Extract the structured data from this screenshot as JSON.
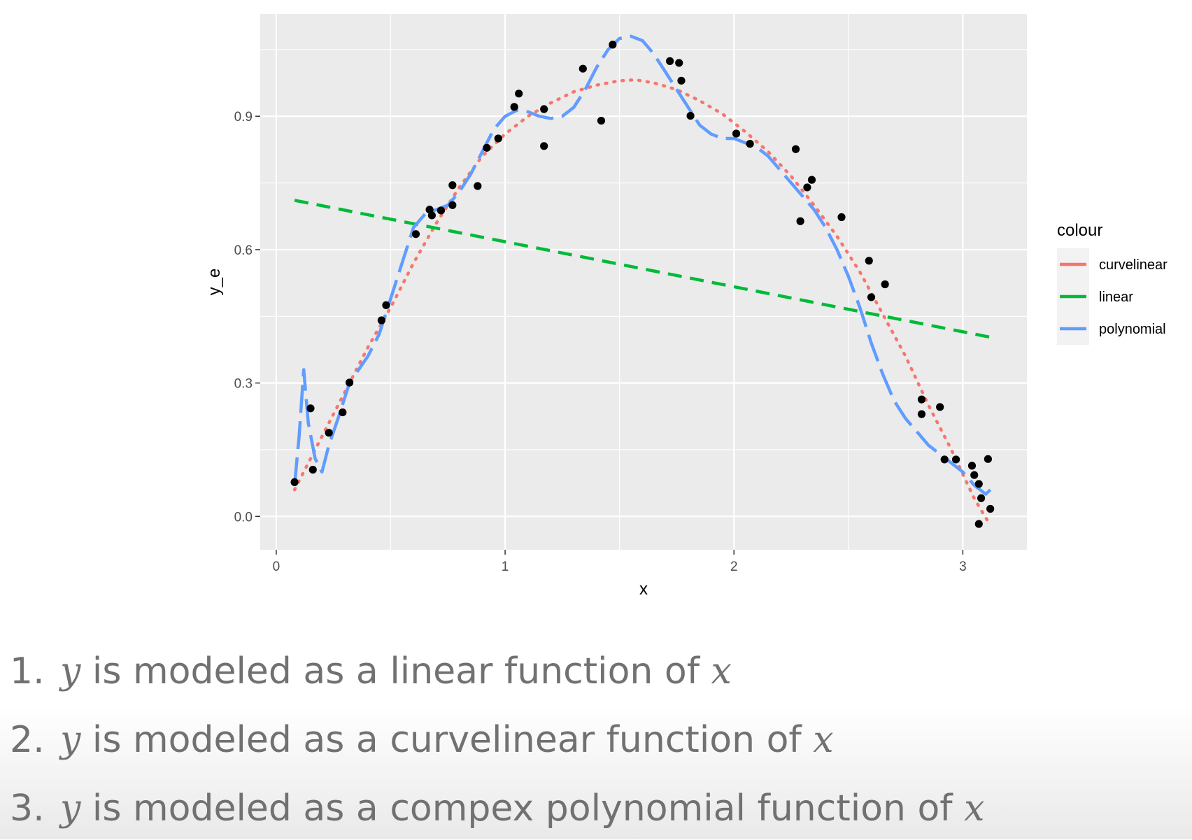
{
  "chart_data": {
    "type": "scatter",
    "title": "",
    "xlabel": "x",
    "ylabel": "y_e",
    "xlim": [
      -0.07,
      3.28
    ],
    "ylim": [
      -0.075,
      1.13
    ],
    "x_ticks": [
      0,
      1,
      2,
      3
    ],
    "x_tick_labels": [
      "0",
      "1",
      "2",
      "3"
    ],
    "y_ticks": [
      0.0,
      0.3,
      0.6,
      0.9
    ],
    "y_tick_labels": [
      "0.0",
      "0.3",
      "0.6",
      "0.9"
    ],
    "grid": true,
    "legend": {
      "title": "colour",
      "position": "right",
      "entries": [
        {
          "label": "curvelinear",
          "color": "#F8766D"
        },
        {
          "label": "linear",
          "color": "#00BA38"
        },
        {
          "label": "polynomial",
          "color": "#619CFF"
        }
      ]
    },
    "points": [
      [
        0.08,
        0.077
      ],
      [
        0.15,
        0.243
      ],
      [
        0.16,
        0.105
      ],
      [
        0.23,
        0.188
      ],
      [
        0.29,
        0.234
      ],
      [
        0.32,
        0.301
      ],
      [
        0.46,
        0.441
      ],
      [
        0.48,
        0.475
      ],
      [
        0.61,
        0.635
      ],
      [
        0.67,
        0.69
      ],
      [
        0.68,
        0.677
      ],
      [
        0.72,
        0.688
      ],
      [
        0.77,
        0.745
      ],
      [
        0.77,
        0.7
      ],
      [
        0.88,
        0.743
      ],
      [
        0.92,
        0.829
      ],
      [
        0.97,
        0.85
      ],
      [
        1.04,
        0.921
      ],
      [
        1.06,
        0.951
      ],
      [
        1.17,
        0.916
      ],
      [
        1.17,
        0.833
      ],
      [
        1.34,
        1.007
      ],
      [
        1.42,
        0.89
      ],
      [
        1.47,
        1.061
      ],
      [
        1.72,
        1.024
      ],
      [
        1.76,
        1.02
      ],
      [
        1.77,
        0.98
      ],
      [
        1.81,
        0.901
      ],
      [
        2.01,
        0.861
      ],
      [
        2.07,
        0.838
      ],
      [
        2.27,
        0.826
      ],
      [
        2.29,
        0.664
      ],
      [
        2.32,
        0.74
      ],
      [
        2.34,
        0.757
      ],
      [
        2.47,
        0.673
      ],
      [
        2.59,
        0.575
      ],
      [
        2.6,
        0.493
      ],
      [
        2.66,
        0.522
      ],
      [
        2.82,
        0.263
      ],
      [
        2.82,
        0.23
      ],
      [
        2.9,
        0.246
      ],
      [
        2.92,
        0.128
      ],
      [
        2.97,
        0.128
      ],
      [
        3.04,
        0.114
      ],
      [
        3.05,
        0.093
      ],
      [
        3.07,
        0.073
      ],
      [
        3.07,
        -0.017
      ],
      [
        3.08,
        0.041
      ],
      [
        3.11,
        0.129
      ],
      [
        3.12,
        0.017
      ]
    ],
    "series": [
      {
        "name": "curvelinear",
        "color": "#F8766D",
        "dash": "dotted",
        "x": [
          0.08,
          0.2,
          0.3,
          0.4,
          0.5,
          0.6,
          0.7,
          0.8,
          0.9,
          1.0,
          1.1,
          1.2,
          1.3,
          1.4,
          1.5,
          1.57,
          1.65,
          1.75,
          1.85,
          1.95,
          2.05,
          2.15,
          2.25,
          2.35,
          2.45,
          2.55,
          2.65,
          2.75,
          2.85,
          2.95,
          3.05,
          3.12
        ],
        "y": [
          0.06,
          0.18,
          0.28,
          0.38,
          0.47,
          0.57,
          0.66,
          0.74,
          0.81,
          0.86,
          0.9,
          0.93,
          0.955,
          0.97,
          0.98,
          0.982,
          0.975,
          0.96,
          0.935,
          0.905,
          0.865,
          0.82,
          0.765,
          0.7,
          0.63,
          0.55,
          0.455,
          0.36,
          0.25,
          0.15,
          0.04,
          -0.02
        ]
      },
      {
        "name": "linear",
        "color": "#00BA38",
        "dash": "dashed",
        "x": [
          0.08,
          3.12
        ],
        "y": [
          0.711,
          0.403
        ]
      },
      {
        "name": "polynomial",
        "color": "#619CFF",
        "dash": "longdash",
        "x": [
          0.08,
          0.1,
          0.12,
          0.14,
          0.17,
          0.2,
          0.23,
          0.27,
          0.32,
          0.36,
          0.4,
          0.45,
          0.5,
          0.55,
          0.6,
          0.65,
          0.7,
          0.75,
          0.8,
          0.85,
          0.9,
          0.95,
          1.0,
          1.05,
          1.1,
          1.15,
          1.2,
          1.25,
          1.3,
          1.35,
          1.4,
          1.45,
          1.5,
          1.55,
          1.6,
          1.65,
          1.7,
          1.75,
          1.8,
          1.85,
          1.9,
          1.95,
          2.0,
          2.05,
          2.1,
          2.15,
          2.2,
          2.25,
          2.3,
          2.35,
          2.4,
          2.45,
          2.5,
          2.55,
          2.6,
          2.65,
          2.7,
          2.75,
          2.8,
          2.85,
          2.9,
          2.95,
          3.0,
          3.05,
          3.1,
          3.12
        ],
        "y": [
          0.07,
          0.18,
          0.33,
          0.21,
          0.13,
          0.1,
          0.16,
          0.22,
          0.3,
          0.33,
          0.36,
          0.41,
          0.49,
          0.57,
          0.65,
          0.68,
          0.69,
          0.7,
          0.73,
          0.77,
          0.82,
          0.87,
          0.9,
          0.913,
          0.91,
          0.9,
          0.895,
          0.9,
          0.92,
          0.96,
          1.01,
          1.05,
          1.075,
          1.08,
          1.07,
          1.04,
          1.0,
          0.96,
          0.92,
          0.88,
          0.86,
          0.85,
          0.85,
          0.84,
          0.83,
          0.81,
          0.78,
          0.75,
          0.72,
          0.69,
          0.65,
          0.6,
          0.54,
          0.47,
          0.39,
          0.32,
          0.26,
          0.22,
          0.19,
          0.16,
          0.14,
          0.12,
          0.1,
          0.07,
          0.05,
          0.06
        ]
      }
    ]
  },
  "captions": [
    {
      "number": "1.",
      "var1": "y",
      "text": " is modeled as a linear function of ",
      "var2": "x"
    },
    {
      "number": "2.",
      "var1": "y",
      "text": " is modeled as a curvelinear function of ",
      "var2": "x"
    },
    {
      "number": "3.",
      "var1": "y",
      "text": " is modeled as a compex polynomial function of ",
      "var2": "x"
    }
  ]
}
